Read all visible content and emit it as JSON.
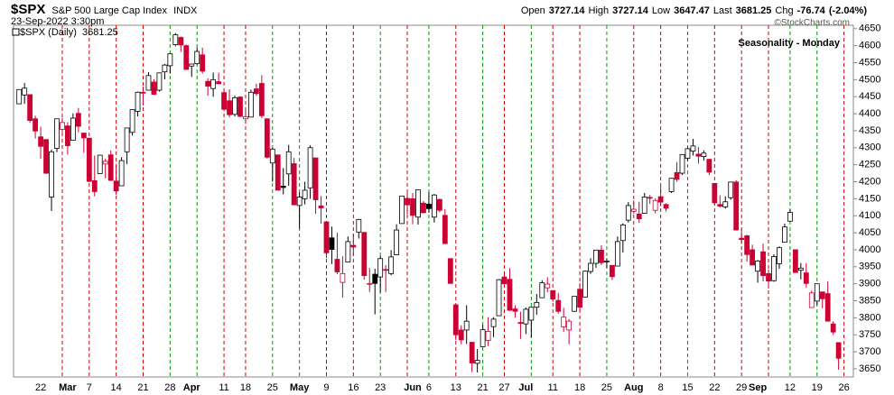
{
  "chart_data": {
    "type": "candlestick",
    "symbol": "$SPX",
    "name": "S&P 500 Large Cap Index",
    "exchange": "INDX",
    "datetime": "23-Sep-2022 3:30pm",
    "credit": "©StockCharts.com",
    "quote": [
      {
        "label": "Open",
        "value": 3727.14
      },
      {
        "label": "High",
        "value": 3727.14
      },
      {
        "label": "Low",
        "value": 3647.47
      },
      {
        "label": "Last",
        "value": 3681.25
      },
      {
        "label": "Chg",
        "value": -76.74
      }
    ],
    "change_pct": {
      "value": -2.04,
      "label": "(-2.04%)"
    },
    "legend": "$SPX (Daily)",
    "legend_value": 3681.25,
    "title": "Seasonality - Monday",
    "title_color": "#0a14d2",
    "up_color": "#000000",
    "down_color": "#cc0033",
    "categories": [
      null,
      null,
      null,
      null,
      "22",
      null,
      null,
      null,
      null,
      "Mar",
      null,
      null,
      null,
      "7",
      null,
      null,
      null,
      null,
      "14",
      null,
      null,
      null,
      null,
      "21",
      null,
      null,
      null,
      null,
      "28",
      null,
      null,
      null,
      "Apr",
      null,
      null,
      null,
      null,
      null,
      "11",
      null,
      null,
      null,
      "18",
      null,
      null,
      null,
      null,
      "25",
      null,
      null,
      null,
      null,
      "May",
      null,
      null,
      null,
      null,
      "9",
      null,
      null,
      null,
      null,
      "16",
      null,
      null,
      null,
      null,
      "23",
      null,
      null,
      null,
      null,
      null,
      "Jun",
      null,
      null,
      "6",
      null,
      null,
      null,
      null,
      "13",
      null,
      null,
      null,
      null,
      "21",
      null,
      null,
      null,
      "27",
      null,
      null,
      null,
      "Jul",
      null,
      null,
      null,
      null,
      "11",
      null,
      null,
      null,
      null,
      "18",
      null,
      null,
      null,
      null,
      "25",
      null,
      null,
      null,
      null,
      "Aug",
      null,
      null,
      null,
      null,
      "8",
      null,
      null,
      null,
      null,
      "15",
      null,
      null,
      null,
      null,
      "22",
      null,
      null,
      null,
      null,
      "29",
      null,
      null,
      "Sep",
      null,
      null,
      null,
      null,
      null,
      "12",
      null,
      null,
      null,
      null,
      "19",
      null,
      null,
      null,
      null,
      "26"
    ],
    "month_labels": [
      "Mar",
      "Apr",
      "May",
      "Jun",
      "Jul",
      "Aug",
      "Sep"
    ],
    "line_colors": [
      null,
      null,
      null,
      null,
      null,
      null,
      null,
      null,
      "#cc0000",
      null,
      null,
      null,
      null,
      "#cc0000",
      null,
      null,
      null,
      null,
      "#cc0000",
      null,
      null,
      null,
      null,
      "#cc0000",
      null,
      null,
      null,
      null,
      "#009900",
      null,
      null,
      null,
      null,
      "#009900",
      null,
      null,
      null,
      null,
      "#cc0000",
      null,
      null,
      null,
      "#cc0000",
      null,
      null,
      null,
      null,
      "#009900",
      null,
      null,
      null,
      null,
      "#009900",
      null,
      null,
      null,
      null,
      "#cc0000",
      null,
      null,
      null,
      null,
      "#cc0000",
      null,
      null,
      null,
      null,
      "#009900",
      null,
      null,
      null,
      null,
      "#cc0000",
      null,
      null,
      null,
      "#009900",
      null,
      null,
      null,
      null,
      "#cc0000",
      null,
      null,
      null,
      null,
      "#009900",
      null,
      null,
      null,
      "#cc0000",
      null,
      null,
      null,
      null,
      "#009900",
      null,
      null,
      null,
      "#cc0000",
      null,
      null,
      null,
      null,
      "#cc0000",
      null,
      null,
      null,
      null,
      "#009900",
      null,
      null,
      null,
      null,
      "#cc0000",
      null,
      null,
      null,
      null,
      "#cc0000",
      null,
      null,
      null,
      null,
      "#009900",
      null,
      null,
      null,
      null,
      "#cc0000",
      null,
      null,
      null,
      null,
      "#cc0000",
      null,
      null,
      null,
      null,
      "#cc0000",
      null,
      null,
      null,
      "#009900",
      null,
      null,
      null,
      null,
      "#009900",
      null,
      null,
      null,
      null,
      "#cc0000"
    ],
    "ohlc": [
      [
        4429,
        4472,
        4429,
        4471
      ],
      [
        4455,
        4490,
        4429,
        4475
      ],
      [
        4456,
        4456,
        4373,
        4380
      ],
      [
        4385,
        4394,
        4327,
        4349
      ],
      [
        4332,
        4362,
        4267,
        4304
      ],
      [
        4324,
        4325,
        4223,
        4225
      ],
      [
        4155,
        4294,
        4114,
        4288
      ],
      [
        4298,
        4385,
        4287,
        4385
      ],
      [
        4354,
        4388,
        4345,
        4374
      ],
      [
        4364,
        4375,
        4280,
        4306
      ],
      [
        4322,
        4401,
        4322,
        4387
      ],
      [
        4401,
        4417,
        4346,
        4363
      ],
      [
        4343,
        4343,
        4285,
        4329
      ],
      [
        4328,
        4329,
        4199,
        4201
      ],
      [
        4203,
        4277,
        4157,
        4171
      ],
      [
        4224,
        4279,
        4224,
        4278
      ],
      [
        4252,
        4268,
        4210,
        4260
      ],
      [
        4279,
        4292,
        4202,
        4204
      ],
      [
        4202,
        4247,
        4161,
        4173
      ],
      [
        4188,
        4272,
        4188,
        4262
      ],
      [
        4288,
        4358,
        4252,
        4358
      ],
      [
        4345,
        4412,
        4336,
        4412
      ],
      [
        4407,
        4465,
        4392,
        4463
      ],
      [
        4463,
        4480,
        4425,
        4461
      ],
      [
        4469,
        4522,
        4469,
        4512
      ],
      [
        4493,
        4501,
        4455,
        4457
      ],
      [
        4469,
        4521,
        4465,
        4520
      ],
      [
        4523,
        4546,
        4501,
        4543
      ],
      [
        4541,
        4576,
        4518,
        4576
      ],
      [
        4603,
        4637,
        4598,
        4632
      ],
      [
        4624,
        4627,
        4582,
        4602
      ],
      [
        4600,
        4603,
        4530,
        4530
      ],
      [
        4540,
        4547,
        4508,
        4546
      ],
      [
        4547,
        4594,
        4544,
        4583
      ],
      [
        4573,
        4594,
        4518,
        4525
      ],
      [
        4495,
        4504,
        4453,
        4481
      ],
      [
        4474,
        4521,
        4450,
        4500
      ],
      [
        4494,
        4521,
        4487,
        4488
      ],
      [
        4462,
        4464,
        4408,
        4413
      ],
      [
        4438,
        4472,
        4389,
        4397
      ],
      [
        4398,
        4453,
        4392,
        4447
      ],
      [
        4449,
        4452,
        4390,
        4392
      ],
      [
        4385,
        4410,
        4371,
        4391
      ],
      [
        4390,
        4471,
        4390,
        4463
      ],
      [
        4473,
        4488,
        4452,
        4459
      ],
      [
        4489,
        4513,
        4387,
        4394
      ],
      [
        4385,
        4386,
        4268,
        4272
      ],
      [
        4255,
        4299,
        4200,
        4296
      ],
      [
        4279,
        4279,
        4175,
        4175
      ],
      [
        4187,
        4240,
        4163,
        4183
      ],
      [
        4223,
        4308,
        4188,
        4288
      ],
      [
        4253,
        4270,
        4132,
        4132
      ],
      [
        4130,
        4169,
        4062,
        4155
      ],
      [
        4150,
        4200,
        4133,
        4175
      ],
      [
        4182,
        4307,
        4150,
        4300
      ],
      [
        4270,
        4270,
        4106,
        4147
      ],
      [
        4129,
        4158,
        4077,
        4123
      ],
      [
        4082,
        4082,
        3976,
        3991
      ],
      [
        4035,
        4068,
        3958,
        4001
      ],
      [
        3972,
        4050,
        3928,
        3935
      ],
      [
        3904,
        3981,
        3859,
        3930
      ],
      [
        3964,
        4039,
        3964,
        4024
      ],
      [
        4013,
        4047,
        3983,
        4008
      ],
      [
        4052,
        4091,
        4033,
        4089
      ],
      [
        4051,
        4051,
        3912,
        3924
      ],
      [
        3900,
        3946,
        3876,
        3901
      ],
      [
        3928,
        3944,
        3810,
        3901
      ],
      [
        3920,
        3982,
        3875,
        3974
      ],
      [
        3942,
        3955,
        3876,
        3941
      ],
      [
        3930,
        3999,
        3925,
        3979
      ],
      [
        3985,
        4075,
        3985,
        4058
      ],
      [
        4077,
        4158,
        4077,
        4158
      ],
      [
        4151,
        4168,
        4104,
        4132
      ],
      [
        4150,
        4167,
        4075,
        4101
      ],
      [
        4096,
        4177,
        4074,
        4176
      ],
      [
        4137,
        4143,
        4107,
        4109
      ],
      [
        4134,
        4169,
        4109,
        4121
      ],
      [
        4096,
        4164,
        4080,
        4161
      ],
      [
        4148,
        4150,
        4110,
        4116
      ],
      [
        4101,
        4119,
        4018,
        4018
      ],
      [
        3974,
        3975,
        3900,
        3901
      ],
      [
        3838,
        3838,
        3735,
        3750
      ],
      [
        3764,
        3778,
        3722,
        3735
      ],
      [
        3764,
        3837,
        3723,
        3790
      ],
      [
        3728,
        3728,
        3640,
        3667
      ],
      [
        3666,
        3708,
        3639,
        3675
      ],
      [
        3715,
        3779,
        3715,
        3765
      ],
      [
        3733,
        3802,
        3717,
        3760
      ],
      [
        3774,
        3802,
        3743,
        3796
      ],
      [
        3806,
        3914,
        3806,
        3912
      ],
      [
        3920,
        3928,
        3889,
        3900
      ],
      [
        3913,
        3946,
        3820,
        3822
      ],
      [
        3826,
        3837,
        3800,
        3819
      ],
      [
        3786,
        3818,
        3738,
        3785
      ],
      [
        3782,
        3830,
        3752,
        3825
      ],
      [
        3793,
        3832,
        3742,
        3831
      ],
      [
        3831,
        3870,
        3809,
        3845
      ],
      [
        3859,
        3910,
        3859,
        3903
      ],
      [
        3888,
        3919,
        3875,
        3899
      ],
      [
        3880,
        3880,
        3847,
        3855
      ],
      [
        3851,
        3873,
        3812,
        3819
      ],
      [
        3773,
        3829,
        3758,
        3802
      ],
      [
        3764,
        3796,
        3722,
        3790
      ],
      [
        3819,
        3863,
        3817,
        3863
      ],
      [
        3884,
        3902,
        3818,
        3831
      ],
      [
        3861,
        3939,
        3860,
        3937
      ],
      [
        3936,
        3975,
        3929,
        3960
      ],
      [
        3960,
        3999,
        3947,
        3999
      ],
      [
        3999,
        4013,
        3955,
        3962
      ],
      [
        3965,
        3975,
        3946,
        3967
      ],
      [
        3954,
        3954,
        3911,
        3921
      ],
      [
        3952,
        4039,
        3952,
        4024
      ],
      [
        4027,
        4078,
        3992,
        4073
      ],
      [
        4087,
        4140,
        4080,
        4130
      ],
      [
        4113,
        4145,
        4106,
        4119
      ],
      [
        4105,
        4141,
        4079,
        4091
      ],
      [
        4107,
        4167,
        4107,
        4155
      ],
      [
        4154,
        4161,
        4135,
        4152
      ],
      [
        4116,
        4151,
        4107,
        4145
      ],
      [
        4156,
        4187,
        4128,
        4140
      ],
      [
        4133,
        4137,
        4112,
        4122
      ],
      [
        4171,
        4211,
        4167,
        4210
      ],
      [
        4227,
        4258,
        4200,
        4207
      ],
      [
        4225,
        4280,
        4220,
        4280
      ],
      [
        4269,
        4301,
        4261,
        4297
      ],
      [
        4290,
        4326,
        4277,
        4305
      ],
      [
        4281,
        4302,
        4253,
        4275
      ],
      [
        4274,
        4292,
        4262,
        4284
      ],
      [
        4266,
        4266,
        4219,
        4228
      ],
      [
        4195,
        4195,
        4130,
        4138
      ],
      [
        4133,
        4160,
        4124,
        4128
      ],
      [
        4126,
        4157,
        4121,
        4141
      ],
      [
        4153,
        4200,
        4147,
        4199
      ],
      [
        4199,
        4204,
        4057,
        4058
      ],
      [
        4034,
        4062,
        4017,
        4030
      ],
      [
        4041,
        4044,
        3965,
        3986
      ],
      [
        4000,
        4015,
        3954,
        3955
      ],
      [
        3937,
        3970,
        3903,
        3967
      ],
      [
        3994,
        4018,
        3907,
        3924
      ],
      [
        3930,
        3942,
        3886,
        3908
      ],
      [
        3909,
        3987,
        3906,
        3980
      ],
      [
        3959,
        4010,
        3944,
        4006
      ],
      [
        4022,
        4077,
        4022,
        4067
      ],
      [
        4084,
        4119,
        4083,
        4110
      ],
      [
        4000,
        4000,
        3933,
        3933
      ],
      [
        3940,
        3961,
        3913,
        3946
      ],
      [
        3932,
        3960,
        3889,
        3901
      ],
      [
        3830,
        3880,
        3830,
        3873
      ],
      [
        3849,
        3900,
        3838,
        3900
      ],
      [
        3876,
        3877,
        3828,
        3856
      ],
      [
        3871,
        3907,
        3789,
        3790
      ],
      [
        3782,
        3790,
        3750,
        3758
      ],
      [
        3727,
        3727,
        3647,
        3681
      ],
      null
    ],
    "ylim": [
      3626,
      4660
    ],
    "yticks": [
      3650,
      3700,
      3750,
      3800,
      3850,
      3900,
      3950,
      4000,
      4050,
      4100,
      4150,
      4200,
      4250,
      4300,
      4350,
      4400,
      4450,
      4500,
      4550,
      4600,
      4650
    ],
    "grid": false
  }
}
